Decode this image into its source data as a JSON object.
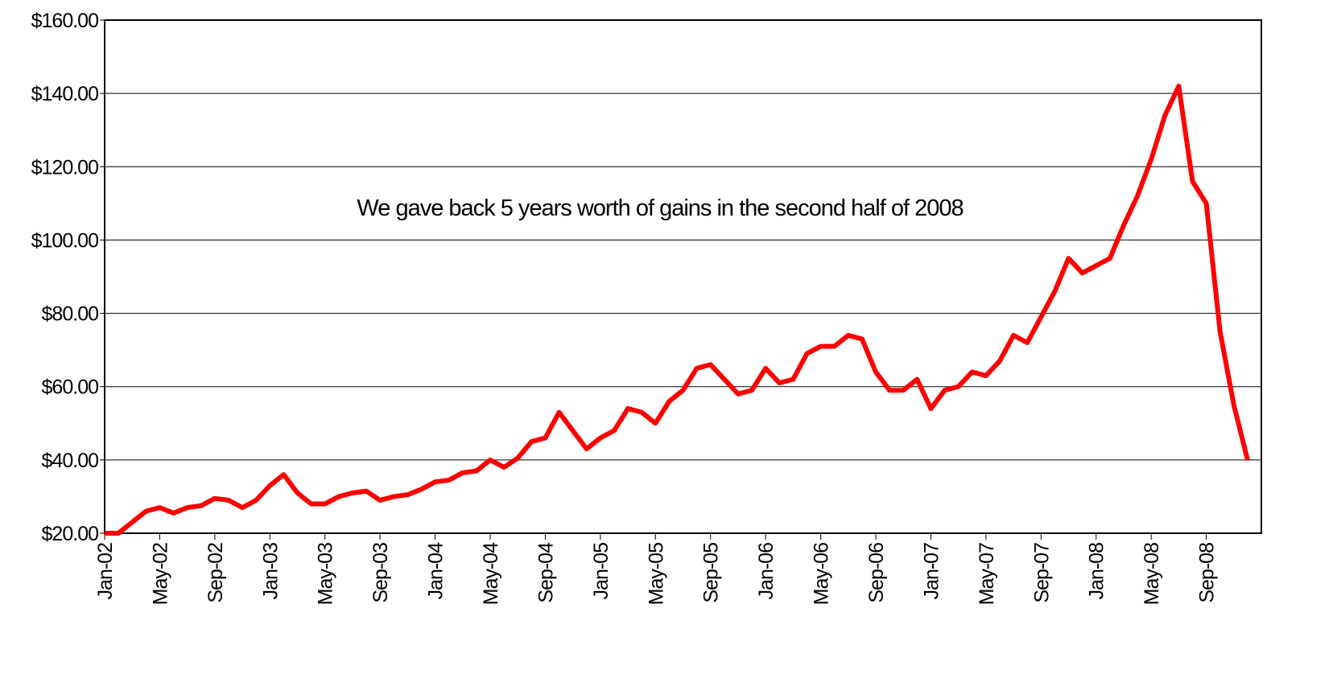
{
  "chart_data": {
    "type": "line",
    "annotation": "We gave back 5 years worth of gains in the second half of 2008",
    "categories": [
      "Jan-02",
      null,
      null,
      null,
      "May-02",
      null,
      null,
      null,
      "Sep-02",
      null,
      null,
      null,
      "Jan-03",
      null,
      null,
      null,
      "May-03",
      null,
      null,
      null,
      "Sep-03",
      null,
      null,
      null,
      "Jan-04",
      null,
      null,
      null,
      "May-04",
      null,
      null,
      null,
      "Sep-04",
      null,
      null,
      null,
      "Jan-05",
      null,
      null,
      null,
      "May-05",
      null,
      null,
      null,
      "Sep-05",
      null,
      null,
      null,
      "Jan-06",
      null,
      null,
      null,
      "May-06",
      null,
      null,
      null,
      "Sep-06",
      null,
      null,
      null,
      "Jan-07",
      null,
      null,
      null,
      "May-07",
      null,
      null,
      null,
      "Sep-07",
      null,
      null,
      null,
      "Jan-08",
      null,
      null,
      null,
      "May-08",
      null,
      null,
      null,
      "Sep-08",
      null,
      null,
      null
    ],
    "series": [
      {
        "color": "#ff0000",
        "values": [
          20,
          20,
          23,
          26,
          27,
          25.5,
          27,
          27.5,
          29.5,
          29,
          27,
          29,
          33,
          36,
          31,
          28,
          28,
          30,
          31,
          31.5,
          29,
          30,
          30.5,
          32,
          34,
          34.5,
          36.5,
          37,
          40,
          38,
          40.5,
          45,
          46,
          53,
          48,
          43,
          46,
          48,
          54,
          53,
          50,
          56,
          59,
          65,
          66,
          62,
          58,
          59,
          65,
          61,
          62,
          69,
          71,
          71,
          74,
          73,
          64,
          59,
          59,
          62,
          54,
          59,
          60,
          64,
          63,
          67,
          74,
          72,
          79,
          86,
          95,
          91,
          93,
          95,
          104,
          112,
          122,
          134,
          142,
          116,
          110,
          75,
          55,
          40
        ]
      }
    ],
    "ylim": [
      20,
      160
    ],
    "yticks": [
      {
        "value": 20,
        "label": "$20.00"
      },
      {
        "value": 40,
        "label": "$40.00"
      },
      {
        "value": 60,
        "label": "$60.00"
      },
      {
        "value": 80,
        "label": "$80.00"
      },
      {
        "value": 100,
        "label": "$100.00"
      },
      {
        "value": 120,
        "label": "$120.00"
      },
      {
        "value": 140,
        "label": "$140.00"
      },
      {
        "value": 160,
        "label": "$160.00"
      }
    ],
    "grid": true
  }
}
